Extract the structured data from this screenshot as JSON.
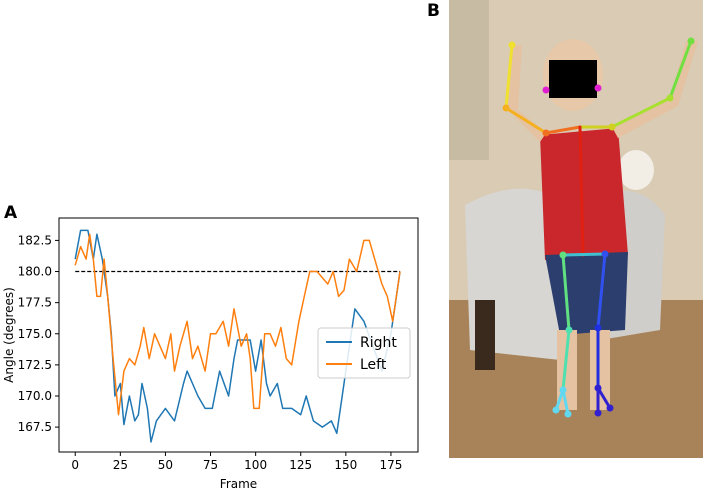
{
  "chart_data": {
    "type": "line",
    "panel_label": "A",
    "x_label": "Frame",
    "y_label": "Angle (degrees)",
    "xlim": [
      -9,
      190
    ],
    "ylim": [
      165.5,
      184.3
    ],
    "xticks": [
      0,
      25,
      50,
      75,
      100,
      125,
      150,
      175
    ],
    "yticks": [
      167.5,
      {
        "value": 170,
        "label": "170.0"
      },
      172.5,
      {
        "value": 175,
        "label": "175.0"
      },
      177.5,
      {
        "value": 180,
        "label": "180.0"
      },
      182.5
    ],
    "legend": "center right",
    "reference": {
      "y": 180,
      "x": [
        0,
        180
      ],
      "color": "#000000"
    },
    "series": [
      {
        "name": "Right",
        "color": "#1f77b4",
        "x": [
          0,
          3,
          7,
          10,
          12,
          15,
          18,
          20,
          22,
          25,
          27,
          30,
          33,
          35,
          37,
          40,
          42,
          45,
          50,
          55,
          60,
          62,
          65,
          68,
          72,
          76,
          80,
          85,
          88,
          90,
          97,
          100,
          103,
          106,
          108,
          112,
          115,
          120,
          125,
          128,
          132,
          137,
          142,
          145,
          148,
          152,
          155,
          160,
          165,
          170,
          175,
          178,
          180
        ],
        "values": [
          181,
          183.3,
          183.3,
          181,
          183,
          181,
          178,
          175,
          170,
          171,
          167.7,
          170,
          168,
          168.5,
          171,
          169,
          166.3,
          168,
          169,
          168,
          171,
          172,
          171,
          170,
          169,
          169,
          172,
          170,
          173,
          174.5,
          174.5,
          172,
          174.5,
          171,
          170,
          171,
          169,
          169,
          168.5,
          170,
          168,
          167.5,
          168,
          167,
          170,
          174,
          177,
          176,
          174,
          172,
          175,
          178,
          180
        ]
      },
      {
        "name": "Left",
        "color": "#ff7f0e",
        "x": [
          0,
          3,
          6,
          8,
          10,
          12,
          14,
          16,
          18,
          21,
          24,
          27,
          30,
          33,
          36,
          38,
          41,
          44,
          47,
          50,
          53,
          55,
          58,
          62,
          65,
          68,
          72,
          75,
          78,
          82,
          85,
          88,
          92,
          95,
          97,
          99,
          102,
          105,
          108,
          111,
          114,
          117,
          120,
          124,
          127,
          130,
          134,
          137,
          140,
          143,
          146,
          149,
          152,
          156,
          160,
          163,
          166,
          170,
          173,
          176,
          180
        ],
        "values": [
          180.5,
          182,
          181,
          183,
          181,
          178,
          178,
          181,
          178,
          173,
          168.5,
          172,
          173,
          172.5,
          174,
          175.5,
          173,
          175,
          174,
          173,
          175,
          172,
          174,
          176,
          173,
          174,
          172,
          175,
          175,
          176,
          174,
          177,
          174,
          175,
          173,
          169,
          169,
          175,
          175,
          174,
          175.5,
          173,
          172.5,
          176,
          178,
          180,
          180,
          179.5,
          179,
          180,
          178,
          178.5,
          181,
          180,
          182.5,
          182.5,
          181,
          179,
          178,
          176,
          180
        ]
      }
    ]
  },
  "photo": {
    "panel_label": "B"
  }
}
